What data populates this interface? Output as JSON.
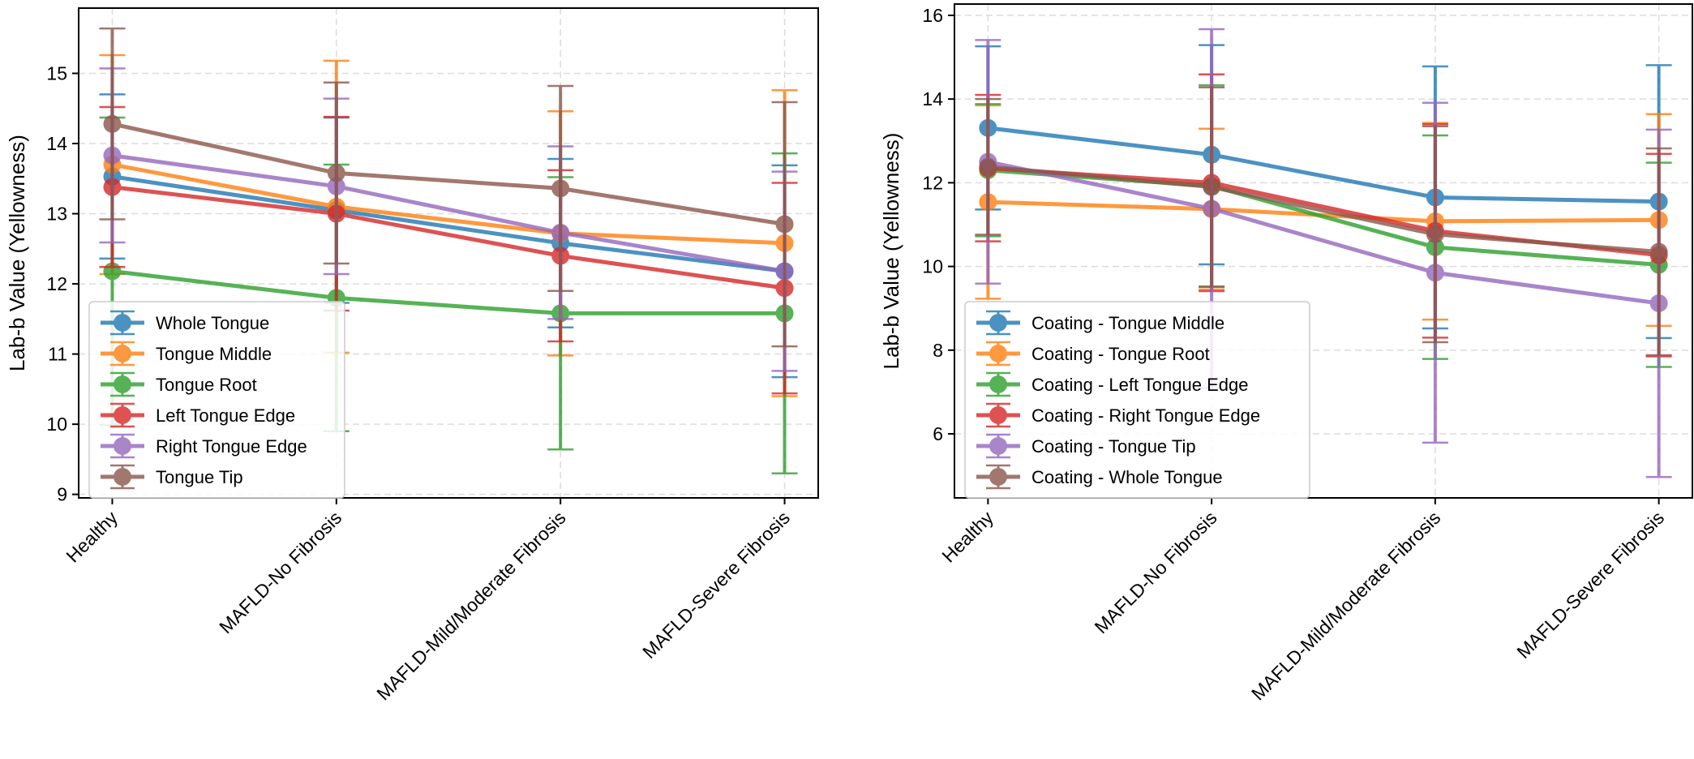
{
  "chart_data": [
    {
      "type": "line",
      "ylabel": "Lab-b Value (Yellowness)",
      "xlabel": "",
      "categories": [
        "Healthy",
        "MAFLD-No Fibrosis",
        "MAFLD-Mild/Moderate Fibrosis",
        "MAFLD-Severe Fibrosis"
      ],
      "ylim": [
        8.95,
        15.93
      ],
      "yticks": [
        9,
        10,
        11,
        12,
        13,
        14,
        15
      ],
      "grid": true,
      "legend_position": "lower-left",
      "series": [
        {
          "name": "Whole Tongue",
          "color": "#1f77b4",
          "values": [
            13.53,
            13.05,
            12.58,
            12.18
          ],
          "errors": [
            1.17,
            1.32,
            1.2,
            1.51
          ]
        },
        {
          "name": "Tongue Middle",
          "color": "#ff7f0e",
          "values": [
            13.7,
            13.1,
            12.72,
            12.58
          ],
          "errors": [
            1.56,
            2.08,
            1.74,
            2.18
          ]
        },
        {
          "name": "Tongue Root",
          "color": "#2ca02c",
          "values": [
            12.18,
            11.8,
            11.58,
            11.58
          ],
          "errors": [
            2.19,
            1.9,
            1.94,
            2.28
          ]
        },
        {
          "name": "Left Tongue Edge",
          "color": "#d62728",
          "values": [
            13.38,
            13.0,
            12.4,
            11.94
          ],
          "errors": [
            1.14,
            1.38,
            1.22,
            1.5
          ]
        },
        {
          "name": "Right Tongue Edge",
          "color": "#9467bd",
          "values": [
            13.83,
            13.39,
            12.73,
            12.18
          ],
          "errors": [
            1.24,
            1.25,
            1.23,
            1.42
          ]
        },
        {
          "name": "Tongue Tip",
          "color": "#8c564b",
          "values": [
            14.28,
            13.58,
            13.36,
            12.85
          ],
          "errors": [
            1.36,
            1.29,
            1.46,
            1.74
          ]
        }
      ]
    },
    {
      "type": "line",
      "ylabel": "Lab-b Value (Yellowness)",
      "xlabel": "",
      "categories": [
        "Healthy",
        "MAFLD-No Fibrosis",
        "MAFLD-Mild/Moderate Fibrosis",
        "MAFLD-Severe Fibrosis"
      ],
      "ylim": [
        4.47,
        16.27
      ],
      "yticks": [
        6,
        8,
        10,
        12,
        14,
        16
      ],
      "grid": true,
      "legend_position": "lower-left",
      "series": [
        {
          "name": "Coating - Tongue Middle",
          "color": "#1f77b4",
          "values": [
            13.31,
            12.67,
            11.65,
            11.55
          ],
          "errors": [
            1.95,
            2.62,
            3.13,
            3.26
          ]
        },
        {
          "name": "Coating - Tongue Root",
          "color": "#ff7f0e",
          "values": [
            11.54,
            11.37,
            11.08,
            11.11
          ],
          "errors": [
            2.31,
            1.92,
            2.35,
            2.53
          ]
        },
        {
          "name": "Coating - Left Tongue Edge",
          "color": "#2ca02c",
          "values": [
            12.3,
            11.92,
            10.46,
            10.04
          ],
          "errors": [
            1.58,
            2.41,
            2.67,
            2.44
          ]
        },
        {
          "name": "Coating - Right Tongue Edge",
          "color": "#d62728",
          "values": [
            12.35,
            12.0,
            10.85,
            10.27
          ],
          "errors": [
            1.75,
            2.59,
            2.55,
            2.42
          ]
        },
        {
          "name": "Coating - Tongue Tip",
          "color": "#9467bd",
          "values": [
            12.5,
            11.38,
            9.85,
            9.12
          ],
          "errors": [
            2.91,
            4.29,
            4.06,
            4.15
          ]
        },
        {
          "name": "Coating - Whole Tongue",
          "color": "#8c564b",
          "values": [
            12.38,
            11.9,
            10.77,
            10.35
          ],
          "errors": [
            1.62,
            2.38,
            2.58,
            2.47
          ]
        }
      ]
    }
  ]
}
